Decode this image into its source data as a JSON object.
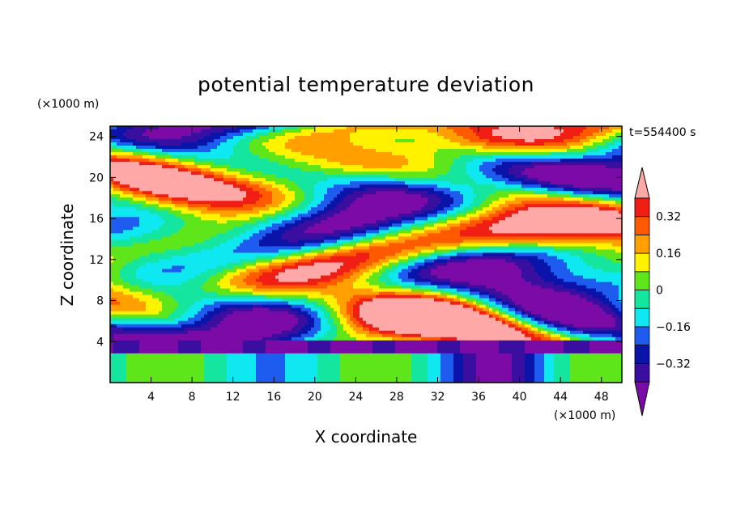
{
  "chart_data": {
    "type": "heatmap",
    "title": "potential temperature deviation",
    "xlabel": "X coordinate",
    "ylabel": "Z coordinate",
    "x_unit": "(×1000 m)",
    "y_unit": "(×1000 m)",
    "time_label": "t=554400 s",
    "xlim": [
      0,
      50
    ],
    "ylim": [
      0,
      25
    ],
    "x_ticks": [
      4,
      8,
      12,
      16,
      20,
      24,
      28,
      32,
      36,
      40,
      44,
      48
    ],
    "y_ticks": [
      4,
      8,
      12,
      16,
      20,
      24
    ],
    "colorbar": {
      "levels": [
        -0.4,
        -0.32,
        -0.24,
        -0.16,
        -0.08,
        0,
        0.08,
        0.16,
        0.24,
        0.32,
        0.4
      ],
      "labeled_levels": [
        -0.32,
        -0.16,
        0,
        0.16,
        0.32
      ],
      "labels": [
        "−0.32",
        "−0.16",
        "0",
        "0.16",
        "0.32"
      ],
      "colors": [
        "#7b0aa6",
        "#3a0fa0",
        "#0a14a8",
        "#1e5cf0",
        "#0fe8f0",
        "#14e6a0",
        "#5fe61a",
        "#fff200",
        "#ffa000",
        "#ff5a00",
        "#f01e14",
        "#ffa8a8"
      ],
      "extend": "both"
    }
  }
}
